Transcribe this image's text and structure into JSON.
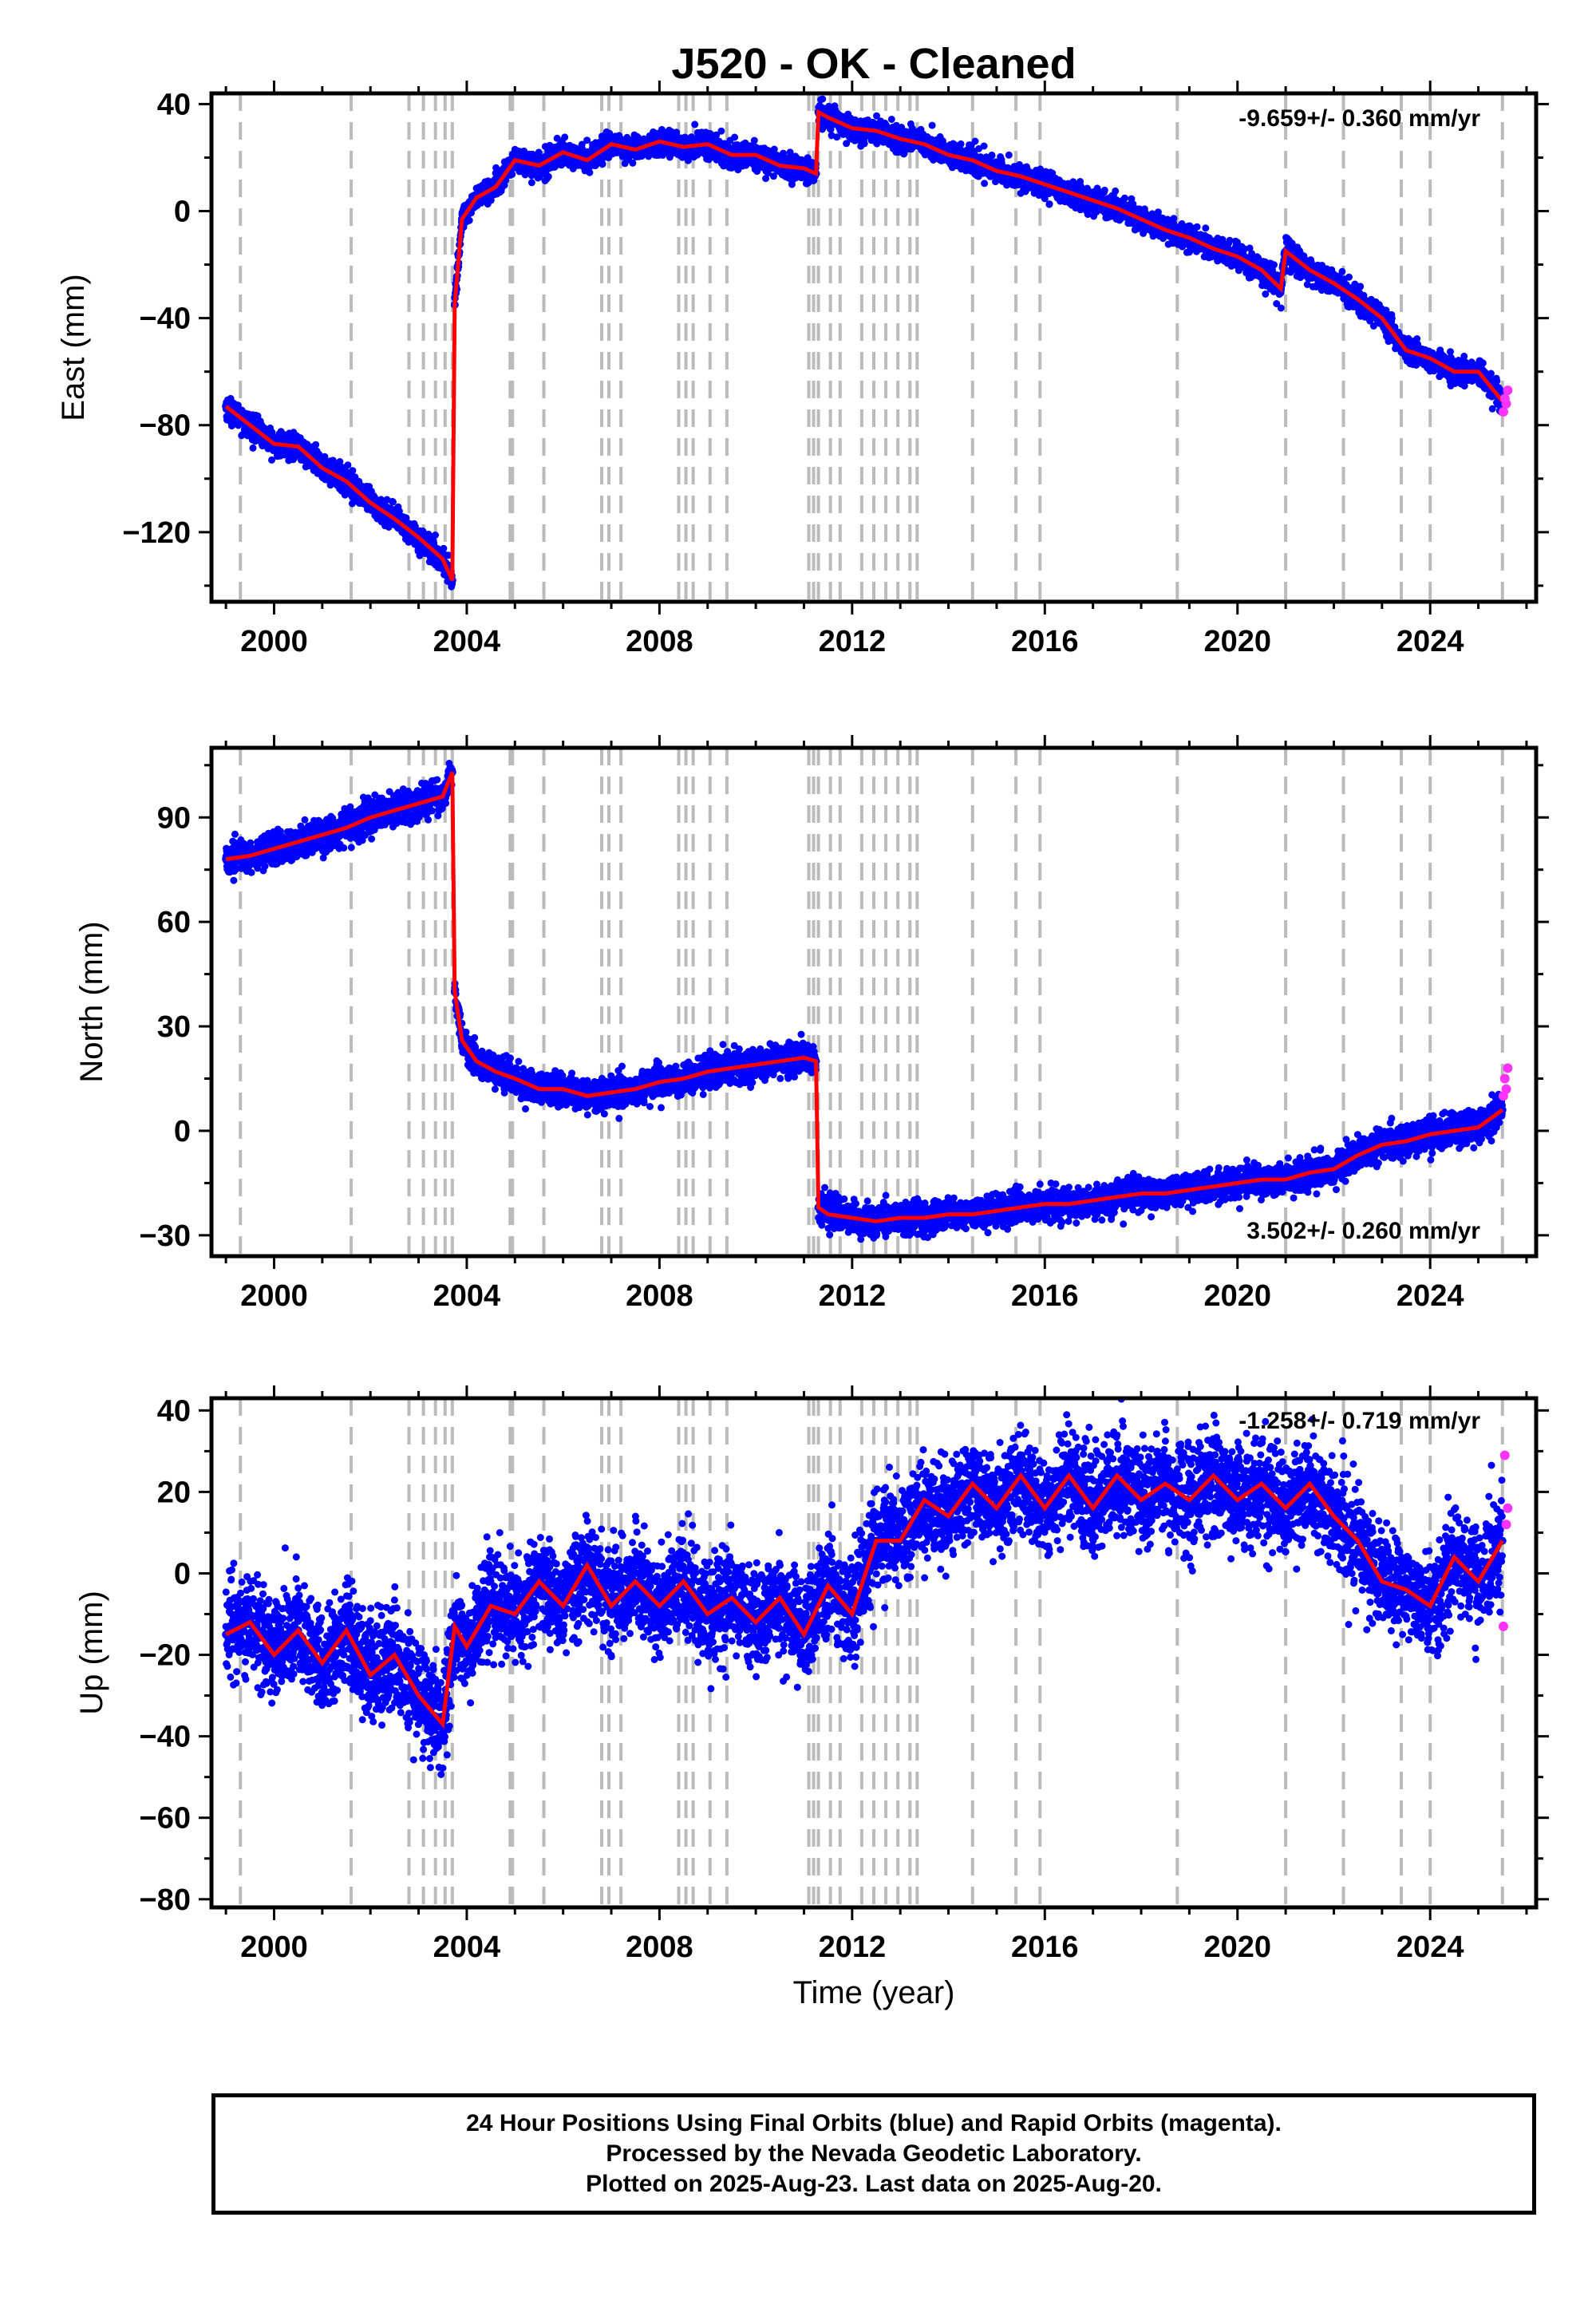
{
  "title": "J520  - OK - Cleaned",
  "footer": {
    "lines": [
      "24 Hour Positions Using Final Orbits (blue) and Rapid Orbits (magenta).",
      "Processed by the Nevada Geodetic Laboratory.",
      "Plotted on 2025-Aug-23. Last data on 2025-Aug-20."
    ]
  },
  "colors": {
    "final_orbits": "#0000ff",
    "rapid_orbits": "#ff33ff",
    "model": "#ff0000",
    "equipment_change": "#bbbbbb"
  },
  "chart_data": [
    {
      "type": "scatter",
      "xlabel": "",
      "ylabel": "East (mm)",
      "rate": "-9.659+/- 0.360 mm/yr",
      "xlim": [
        1998.7,
        2026.2
      ],
      "ylim": [
        -146,
        44
      ],
      "xticks": [
        2000,
        2004,
        2008,
        2012,
        2016,
        2020,
        2024
      ],
      "yticks": [
        -120,
        -80,
        -40,
        0,
        40
      ],
      "grid": false,
      "series": [
        {
          "name": "Final Orbits (blue)",
          "color": "#0000ff",
          "x": [
            1999.0,
            1999.5,
            2000.0,
            2000.5,
            2001.0,
            2001.5,
            2002.0,
            2002.5,
            2003.0,
            2003.5,
            2003.7,
            2003.75,
            2003.9,
            2004.2,
            2004.6,
            2005.0,
            2005.5,
            2006.0,
            2006.5,
            2007.0,
            2007.5,
            2008.0,
            2008.5,
            2009.0,
            2009.5,
            2010.0,
            2010.5,
            2011.0,
            2011.25,
            2011.3,
            2011.5,
            2012.0,
            2012.5,
            2013.0,
            2013.5,
            2014.0,
            2014.5,
            2015.0,
            2015.5,
            2016.0,
            2016.5,
            2017.0,
            2017.5,
            2018.0,
            2018.5,
            2019.0,
            2019.5,
            2020.0,
            2020.5,
            2020.9,
            2021.0,
            2021.5,
            2022.0,
            2022.5,
            2023.0,
            2023.5,
            2024.0,
            2024.5,
            2025.0,
            2025.5
          ],
          "y": [
            -73,
            -80,
            -87,
            -88,
            -96,
            -101,
            -109,
            -115,
            -122,
            -130,
            -138,
            -35,
            -3,
            5,
            9,
            19,
            17,
            22,
            19,
            25,
            23,
            26,
            24,
            25,
            21,
            21,
            17,
            16,
            14,
            37,
            35,
            31,
            30,
            27,
            25,
            21,
            19,
            15,
            13,
            10,
            7,
            4,
            1,
            -3,
            -7,
            -10,
            -14,
            -17,
            -22,
            -29,
            -15,
            -22,
            -27,
            -33,
            -40,
            -52,
            -55,
            -60,
            -60,
            -71
          ]
        },
        {
          "name": "Rapid Orbits (magenta)",
          "color": "#ff33ff",
          "x": [
            2025.52,
            2025.55,
            2025.58,
            2025.61
          ],
          "y": [
            -75,
            -70,
            -72,
            -67
          ]
        }
      ]
    },
    {
      "type": "scatter",
      "xlabel": "",
      "ylabel": "North (mm)",
      "rate": "3.502+/- 0.260 mm/yr",
      "xlim": [
        1998.7,
        2026.2
      ],
      "ylim": [
        -36,
        110
      ],
      "xticks": [
        2000,
        2004,
        2008,
        2012,
        2016,
        2020,
        2024
      ],
      "yticks": [
        -30,
        0,
        30,
        60,
        90
      ],
      "grid": false,
      "series": [
        {
          "name": "Final Orbits (blue)",
          "color": "#0000ff",
          "x": [
            1999.0,
            1999.5,
            2000.0,
            2000.5,
            2001.0,
            2001.5,
            2002.0,
            2002.5,
            2003.0,
            2003.5,
            2003.7,
            2003.75,
            2003.9,
            2004.2,
            2004.6,
            2005.0,
            2005.5,
            2006.0,
            2006.5,
            2007.0,
            2007.5,
            2008.0,
            2008.5,
            2009.0,
            2009.5,
            2010.0,
            2010.5,
            2011.0,
            2011.25,
            2011.3,
            2011.5,
            2012.0,
            2012.5,
            2013.0,
            2013.5,
            2014.0,
            2014.5,
            2015.0,
            2015.5,
            2016.0,
            2016.5,
            2017.0,
            2017.5,
            2018.0,
            2018.5,
            2019.0,
            2019.5,
            2020.0,
            2020.5,
            2021.0,
            2021.5,
            2022.0,
            2022.5,
            2023.0,
            2023.5,
            2024.0,
            2024.5,
            2025.0,
            2025.5
          ],
          "y": [
            78,
            79,
            81,
            83,
            85,
            87,
            90,
            92,
            94,
            96,
            103,
            40,
            26,
            20,
            17,
            15,
            12,
            12,
            10,
            11,
            12,
            14,
            15,
            17,
            18,
            19,
            20,
            21,
            20,
            -22,
            -24,
            -25,
            -26,
            -25,
            -25,
            -24,
            -24,
            -23,
            -22,
            -21,
            -21,
            -20,
            -19,
            -18,
            -18,
            -17,
            -16,
            -15,
            -14,
            -14,
            -12,
            -11,
            -7,
            -4,
            -3,
            -1,
            0,
            1,
            6
          ]
        },
        {
          "name": "Rapid Orbits (magenta)",
          "color": "#ff33ff",
          "x": [
            2025.52,
            2025.55,
            2025.58,
            2025.61
          ],
          "y": [
            10,
            15,
            12,
            18
          ]
        }
      ]
    },
    {
      "type": "scatter",
      "xlabel": "Time (year)",
      "ylabel": "Up (mm)",
      "rate": "-1.258+/- 0.719 mm/yr",
      "xlim": [
        1998.7,
        2026.2
      ],
      "ylim": [
        -82,
        43
      ],
      "xticks": [
        2000,
        2004,
        2008,
        2012,
        2016,
        2020,
        2024
      ],
      "yticks": [
        -80,
        -60,
        -40,
        -20,
        0,
        20,
        40
      ],
      "grid": false,
      "series": [
        {
          "name": "Final Orbits (blue)",
          "color": "#0000ff",
          "x": [
            1999.0,
            1999.5,
            2000.0,
            2000.5,
            2001.0,
            2001.5,
            2002.0,
            2002.5,
            2003.0,
            2003.5,
            2003.75,
            2004.0,
            2004.5,
            2005.0,
            2005.5,
            2006.0,
            2006.5,
            2007.0,
            2007.5,
            2008.0,
            2008.5,
            2009.0,
            2009.5,
            2010.0,
            2010.5,
            2011.0,
            2011.5,
            2012.0,
            2012.5,
            2013.0,
            2013.5,
            2014.0,
            2014.5,
            2015.0,
            2015.5,
            2016.0,
            2016.5,
            2017.0,
            2017.5,
            2018.0,
            2018.5,
            2019.0,
            2019.5,
            2020.0,
            2020.5,
            2021.0,
            2021.5,
            2022.0,
            2022.5,
            2023.0,
            2023.5,
            2024.0,
            2024.5,
            2025.0,
            2025.5
          ],
          "y": [
            -15,
            -12,
            -20,
            -14,
            -22,
            -14,
            -25,
            -20,
            -30,
            -37,
            -13,
            -18,
            -8,
            -10,
            -2,
            -8,
            2,
            -8,
            -2,
            -8,
            -2,
            -10,
            -6,
            -12,
            -6,
            -15,
            -3,
            -10,
            8,
            8,
            18,
            14,
            22,
            16,
            24,
            16,
            24,
            16,
            24,
            18,
            22,
            18,
            24,
            18,
            22,
            16,
            22,
            14,
            8,
            -2,
            -4,
            -8,
            4,
            -2,
            8
          ]
        },
        {
          "name": "Rapid Orbits (magenta)",
          "color": "#ff33ff",
          "x": [
            2025.52,
            2025.55,
            2025.58,
            2025.61
          ],
          "y": [
            -13,
            29,
            12,
            16
          ]
        }
      ]
    }
  ],
  "event_lines": [
    1999.3,
    2001.6,
    2002.8,
    2003.1,
    2003.35,
    2003.55,
    2003.7,
    2004.9,
    2004.95,
    2005.6,
    2006.8,
    2006.95,
    2007.2,
    2008.4,
    2008.55,
    2008.7,
    2009.05,
    2009.4,
    2011.1,
    2011.2,
    2011.3,
    2011.55,
    2011.75,
    2012.2,
    2012.45,
    2012.7,
    2012.95,
    2013.2,
    2013.35,
    2014.5,
    2015.4,
    2015.9,
    2018.75,
    2021.0,
    2022.2,
    2023.4,
    2024.0,
    2025.5
  ]
}
